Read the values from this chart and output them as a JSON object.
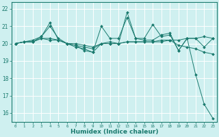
{
  "title": "",
  "xlabel": "Humidex (Indice chaleur)",
  "ylabel": "",
  "background_color": "#cff0f0",
  "grid_color": "#ffffff",
  "line_color": "#1a7a6e",
  "xlim": [
    -0.5,
    23.5
  ],
  "ylim": [
    15.5,
    22.4
  ],
  "yticks": [
    16,
    17,
    18,
    19,
    20,
    21,
    22
  ],
  "xticks": [
    0,
    1,
    2,
    3,
    4,
    5,
    6,
    7,
    8,
    9,
    10,
    11,
    12,
    13,
    14,
    15,
    16,
    17,
    18,
    19,
    20,
    21,
    22,
    23
  ],
  "series": [
    [
      20.0,
      20.1,
      20.2,
      20.4,
      21.0,
      20.3,
      20.0,
      19.9,
      19.6,
      19.5,
      21.0,
      20.3,
      20.3,
      21.5,
      20.3,
      20.3,
      21.1,
      20.4,
      20.5,
      19.6,
      20.3,
      18.2,
      16.5,
      15.7
    ],
    [
      20.0,
      20.1,
      20.1,
      20.4,
      21.2,
      20.2,
      20.0,
      19.8,
      19.7,
      19.5,
      20.0,
      20.1,
      20.0,
      21.8,
      20.3,
      20.2,
      20.2,
      20.5,
      20.6,
      19.6,
      20.3,
      20.3,
      20.4,
      20.3
    ],
    [
      20.0,
      20.1,
      20.1,
      20.3,
      20.2,
      20.2,
      20.0,
      20.0,
      19.9,
      19.8,
      20.0,
      20.0,
      20.0,
      20.1,
      20.1,
      20.1,
      20.1,
      20.2,
      20.2,
      20.2,
      20.3,
      20.3,
      19.8,
      20.3
    ],
    [
      20.0,
      20.1,
      20.1,
      20.3,
      20.3,
      20.2,
      20.0,
      19.9,
      19.8,
      19.7,
      20.0,
      20.0,
      20.0,
      20.1,
      20.1,
      20.1,
      20.1,
      20.1,
      20.2,
      19.9,
      19.8,
      19.7,
      19.5,
      19.4
    ]
  ]
}
